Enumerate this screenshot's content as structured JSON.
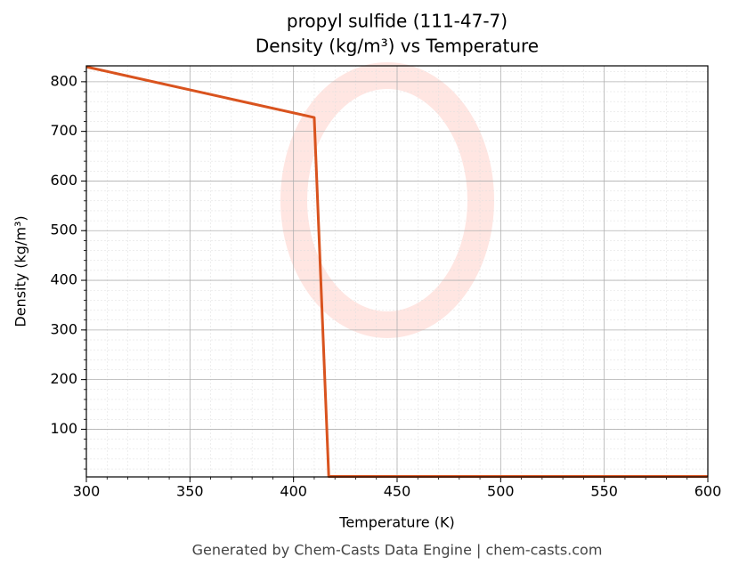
{
  "chart_data": {
    "type": "line",
    "title": "propyl sulfide (111-47-7)",
    "subtitle": "Density (kg/m³) vs Temperature",
    "x_label": "Temperature (K)",
    "y_label": "Density (kg/m³)",
    "footer": "Generated by Chem-Casts Data Engine | chem-casts.com",
    "x": [
      300,
      410,
      417,
      600
    ],
    "values": [
      830,
      728,
      5,
      5
    ],
    "color": "#d9531e",
    "xlim": [
      300,
      600
    ],
    "xticks": [
      300,
      350,
      400,
      450,
      500,
      550,
      600
    ],
    "ylim": [
      4,
      832
    ],
    "yticks": [
      100,
      200,
      300,
      400,
      500,
      600,
      700,
      800
    ],
    "grid": true
  }
}
